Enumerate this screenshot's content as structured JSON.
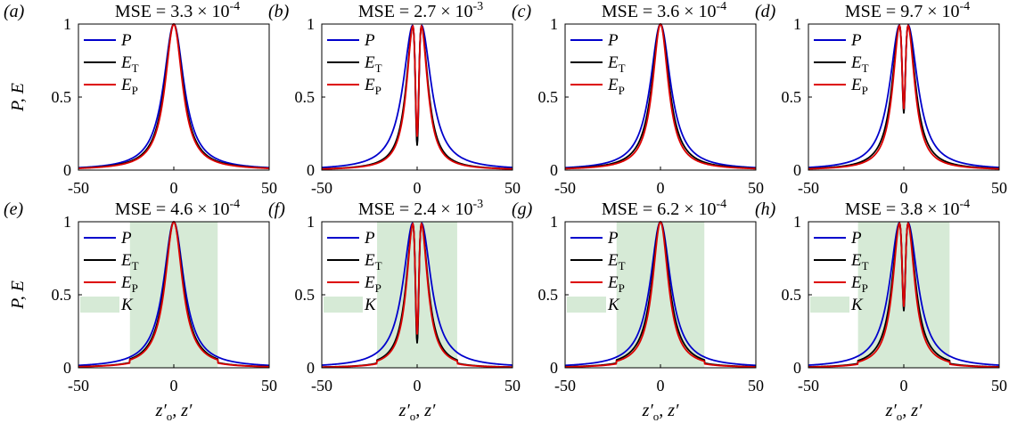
{
  "chart_data": [
    {
      "panel": "(a)",
      "type": "line",
      "mse_mantissa": "3.3",
      "mse_exp": "-4",
      "x": [
        -50,
        0,
        50
      ],
      "ylim": [
        0,
        1
      ],
      "xticks": [
        "-50",
        "0",
        "50"
      ],
      "yticks": [
        "0",
        "0.5",
        "1"
      ],
      "ylabel": "P, E",
      "has_mask": false,
      "series": [
        {
          "name": "P",
          "color": "#0000cc",
          "peaks": [
            0
          ],
          "width": 6.5,
          "dip": 1
        },
        {
          "name": "E_T",
          "color": "#000000",
          "peaks": [
            0
          ],
          "width": 5.8,
          "dip": 1
        },
        {
          "name": "E_P",
          "color": "#dd0000",
          "peaks": [
            0
          ],
          "width": 5.5,
          "dip": 1
        }
      ]
    },
    {
      "panel": "(b)",
      "type": "line",
      "mse_mantissa": "2.7",
      "mse_exp": "-3",
      "x": [
        -50,
        0,
        50
      ],
      "ylim": [
        0,
        1
      ],
      "xticks": [
        "-50",
        "0",
        "50"
      ],
      "yticks": [
        "0",
        "0.5",
        "1"
      ],
      "ylabel": "",
      "has_mask": false,
      "series": [
        {
          "name": "P",
          "color": "#0000cc",
          "peaks": [
            -2,
            2
          ],
          "width": 6.5,
          "dip": 0.2
        },
        {
          "name": "E_T",
          "color": "#000000",
          "peaks": [
            -2,
            2
          ],
          "width": 4.5,
          "dip": 0.2
        },
        {
          "name": "E_P",
          "color": "#dd0000",
          "peaks": [
            -2,
            2
          ],
          "width": 4.2,
          "dip": 0.28
        }
      ]
    },
    {
      "panel": "(c)",
      "type": "line",
      "mse_mantissa": "3.6",
      "mse_exp": "-4",
      "x": [
        -50,
        0,
        50
      ],
      "ylim": [
        0,
        1
      ],
      "xticks": [
        "-50",
        "0",
        "50"
      ],
      "yticks": [
        "0",
        "0.5",
        "1"
      ],
      "ylabel": "",
      "has_mask": false,
      "series": [
        {
          "name": "P",
          "color": "#0000cc",
          "peaks": [
            0
          ],
          "width": 6.5,
          "dip": 1
        },
        {
          "name": "E_T",
          "color": "#000000",
          "peaks": [
            0
          ],
          "width": 5.5,
          "dip": 1
        },
        {
          "name": "E_P",
          "color": "#dd0000",
          "peaks": [
            0
          ],
          "width": 5.0,
          "dip": 1
        }
      ]
    },
    {
      "panel": "(d)",
      "type": "line",
      "mse_mantissa": "9.7",
      "mse_exp": "-4",
      "x": [
        -50,
        0,
        50
      ],
      "ylim": [
        0,
        1
      ],
      "xticks": [
        "-50",
        "0",
        "50"
      ],
      "yticks": [
        "0",
        "0.5",
        "1"
      ],
      "ylabel": "",
      "has_mask": false,
      "series": [
        {
          "name": "P",
          "color": "#0000cc",
          "peaks": [
            -2,
            2
          ],
          "width": 6.5,
          "dip": 0.45
        },
        {
          "name": "E_T",
          "color": "#000000",
          "peaks": [
            -2,
            2
          ],
          "width": 5.0,
          "dip": 0.45
        },
        {
          "name": "E_P",
          "color": "#dd0000",
          "peaks": [
            -2,
            2
          ],
          "width": 4.5,
          "dip": 0.5
        }
      ]
    },
    {
      "panel": "(e)",
      "type": "line",
      "mse_mantissa": "4.6",
      "mse_exp": "-4",
      "x": [
        -50,
        0,
        50
      ],
      "ylim": [
        0,
        1
      ],
      "xticks": [
        "-50",
        "0",
        "50"
      ],
      "yticks": [
        "0",
        "0.5",
        "1"
      ],
      "ylabel": "P, E",
      "has_mask": true,
      "mask": [
        -23,
        23
      ],
      "series": [
        {
          "name": "P",
          "color": "#0000cc",
          "peaks": [
            0
          ],
          "width": 6.5,
          "dip": 1
        },
        {
          "name": "E_T",
          "color": "#000000",
          "peaks": [
            0
          ],
          "width": 5.8,
          "dip": 1
        },
        {
          "name": "E_P",
          "color": "#dd0000",
          "peaks": [
            0
          ],
          "width": 5.5,
          "dip": 1
        }
      ]
    },
    {
      "panel": "(f)",
      "type": "line",
      "mse_mantissa": "2.4",
      "mse_exp": "-3",
      "x": [
        -50,
        0,
        50
      ],
      "ylim": [
        0,
        1
      ],
      "xticks": [
        "-50",
        "0",
        "50"
      ],
      "yticks": [
        "0",
        "0.5",
        "1"
      ],
      "ylabel": "",
      "has_mask": true,
      "mask": [
        -21,
        21
      ],
      "series": [
        {
          "name": "P",
          "color": "#0000cc",
          "peaks": [
            -2,
            2
          ],
          "width": 6.5,
          "dip": 0.2
        },
        {
          "name": "E_T",
          "color": "#000000",
          "peaks": [
            -2,
            2
          ],
          "width": 4.5,
          "dip": 0.2
        },
        {
          "name": "E_P",
          "color": "#dd0000",
          "peaks": [
            -2,
            2
          ],
          "width": 4.2,
          "dip": 0.28
        }
      ]
    },
    {
      "panel": "(g)",
      "type": "line",
      "mse_mantissa": "6.2",
      "mse_exp": "-4",
      "x": [
        -50,
        0,
        50
      ],
      "ylim": [
        0,
        1
      ],
      "xticks": [
        "-50",
        "0",
        "50"
      ],
      "yticks": [
        "0",
        "0.5",
        "1"
      ],
      "ylabel": "",
      "has_mask": true,
      "mask": [
        -23,
        23
      ],
      "series": [
        {
          "name": "P",
          "color": "#0000cc",
          "peaks": [
            0
          ],
          "width": 6.5,
          "dip": 1
        },
        {
          "name": "E_T",
          "color": "#000000",
          "peaks": [
            0
          ],
          "width": 5.5,
          "dip": 1
        },
        {
          "name": "E_P",
          "color": "#dd0000",
          "peaks": [
            0
          ],
          "width": 5.0,
          "dip": 1
        }
      ]
    },
    {
      "panel": "(h)",
      "type": "line",
      "mse_mantissa": "3.8",
      "mse_exp": "-4",
      "x": [
        -50,
        0,
        50
      ],
      "ylim": [
        0,
        1
      ],
      "xticks": [
        "-50",
        "0",
        "50"
      ],
      "yticks": [
        "0",
        "0.5",
        "1"
      ],
      "ylabel": "",
      "has_mask": true,
      "mask": [
        -24,
        24
      ],
      "series": [
        {
          "name": "P",
          "color": "#0000cc",
          "peaks": [
            -2,
            2
          ],
          "width": 6.5,
          "dip": 0.45
        },
        {
          "name": "E_T",
          "color": "#000000",
          "peaks": [
            -2,
            2
          ],
          "width": 5.0,
          "dip": 0.45
        },
        {
          "name": "E_P",
          "color": "#dd0000",
          "peaks": [
            -2,
            2
          ],
          "width": 4.5,
          "dip": 0.5
        }
      ]
    }
  ],
  "labels": {
    "mse_prefix": "MSE = ",
    "times_ten": " × 10",
    "legend_P": "P",
    "legend_E": "E",
    "sub_T": "T",
    "sub_P": "P",
    "legend_K": "K",
    "xlabel_main": "z′",
    "xlabel_sub": "o",
    "xlabel_rest": ", z′"
  },
  "colors": {
    "mask_fill": "#d6ead6",
    "P": "#0000cc",
    "E_T": "#000000",
    "E_P": "#dd0000"
  }
}
